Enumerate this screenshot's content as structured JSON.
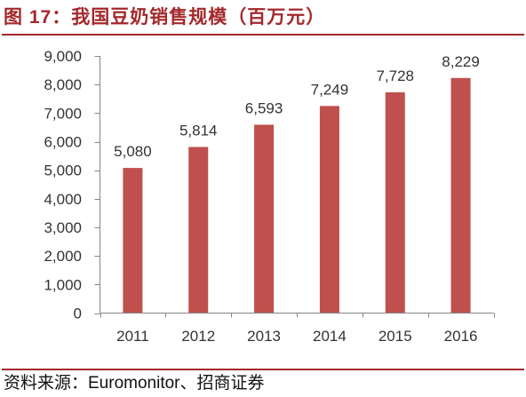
{
  "colors": {
    "accent": "#A3282B",
    "bar": "#C0504D",
    "axis": "#868686",
    "text": "#333333"
  },
  "source": "资料来源：Euromonitor、招商证券",
  "chart_data": {
    "type": "bar",
    "title": "图 17：我国豆奶销售规模（百万元）",
    "categories": [
      "2011",
      "2012",
      "2013",
      "2014",
      "2015",
      "2016"
    ],
    "values": [
      5080,
      5814,
      6593,
      7249,
      7728,
      8229
    ],
    "value_labels": [
      "5,080",
      "5,814",
      "6,593",
      "7,249",
      "7,728",
      "8,229"
    ],
    "ylim": [
      0,
      9000
    ],
    "yticks": [
      0,
      1000,
      2000,
      3000,
      4000,
      5000,
      6000,
      7000,
      8000,
      9000
    ],
    "ytick_labels": [
      "0",
      "1,000",
      "2,000",
      "3,000",
      "4,000",
      "5,000",
      "6,000",
      "7,000",
      "8,000",
      "9,000"
    ],
    "grid": false,
    "legend": "none"
  }
}
